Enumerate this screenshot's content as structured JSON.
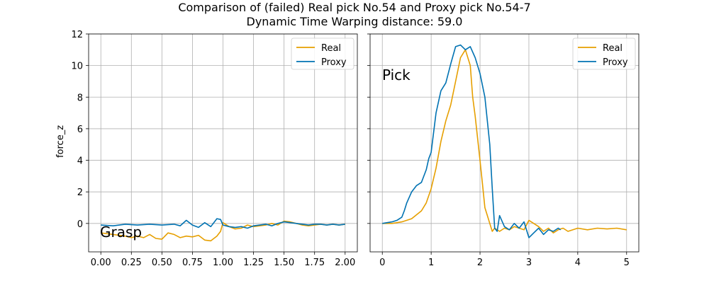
{
  "figure": {
    "title_line1": "Comparison of (failed) Real pick No.54 and Proxy pick No.54-7",
    "title_line2": "Dynamic Time Warping distance: 59.0"
  },
  "colors": {
    "real": "#e69f00",
    "proxy": "#0072b2",
    "grid": "#b0b0b0",
    "axis": "#000000"
  },
  "chart_data": [
    {
      "type": "line",
      "annotation": "Grasp",
      "xlabel": "",
      "ylabel": "force_z",
      "xlim": [
        -0.1,
        2.1
      ],
      "ylim": [
        -1.8,
        12
      ],
      "xticks": [
        0.0,
        0.25,
        0.5,
        0.75,
        1.0,
        1.25,
        1.5,
        1.75,
        2.0
      ],
      "xtick_labels": [
        "0.00",
        "0.25",
        "0.50",
        "0.75",
        "1.00",
        "1.25",
        "1.50",
        "1.75",
        "2.00"
      ],
      "yticks": [
        0,
        2,
        4,
        6,
        8,
        10,
        12
      ],
      "ytick_labels": [
        "0",
        "2",
        "4",
        "6",
        "8",
        "10",
        "12"
      ],
      "grid": true,
      "legend": "top-right",
      "series": [
        {
          "name": "Real",
          "x": [
            0.0,
            0.1,
            0.2,
            0.25,
            0.3,
            0.35,
            0.4,
            0.45,
            0.5,
            0.55,
            0.6,
            0.65,
            0.7,
            0.75,
            0.8,
            0.85,
            0.9,
            0.95,
            0.98,
            1.0,
            1.05,
            1.1,
            1.15,
            1.2,
            1.25,
            1.3,
            1.35,
            1.4,
            1.45,
            1.5,
            1.55,
            1.6,
            1.65,
            1.7,
            1.75,
            1.8,
            1.85,
            1.9,
            1.95,
            2.0
          ],
          "y": [
            -0.6,
            -0.7,
            -0.8,
            -0.9,
            -0.8,
            -0.9,
            -0.7,
            -0.95,
            -1.0,
            -0.6,
            -0.7,
            -0.9,
            -0.8,
            -0.85,
            -0.75,
            -1.05,
            -1.1,
            -0.8,
            -0.5,
            0.05,
            -0.2,
            -0.35,
            -0.3,
            -0.1,
            -0.2,
            -0.15,
            -0.1,
            0.0,
            -0.1,
            0.15,
            0.1,
            0.0,
            -0.1,
            -0.15,
            -0.1,
            -0.05,
            -0.1,
            -0.05,
            -0.1,
            -0.05
          ]
        },
        {
          "name": "Proxy",
          "x": [
            0.0,
            0.1,
            0.2,
            0.3,
            0.4,
            0.5,
            0.6,
            0.65,
            0.7,
            0.75,
            0.8,
            0.85,
            0.9,
            0.95,
            0.98,
            1.0,
            1.05,
            1.1,
            1.15,
            1.2,
            1.25,
            1.3,
            1.35,
            1.4,
            1.45,
            1.5,
            1.55,
            1.6,
            1.65,
            1.7,
            1.75,
            1.8,
            1.85,
            1.9,
            1.95,
            2.0
          ],
          "y": [
            -0.1,
            -0.15,
            -0.05,
            -0.1,
            -0.05,
            -0.1,
            -0.05,
            -0.15,
            0.2,
            -0.1,
            -0.25,
            0.05,
            -0.2,
            0.3,
            0.25,
            -0.1,
            -0.2,
            -0.25,
            -0.2,
            -0.3,
            -0.15,
            -0.1,
            -0.05,
            -0.15,
            0.0,
            0.1,
            0.05,
            0.0,
            -0.05,
            -0.1,
            -0.05,
            -0.05,
            -0.1,
            -0.05,
            -0.1,
            -0.05
          ]
        }
      ]
    },
    {
      "type": "line",
      "annotation": "Pick",
      "xlabel": "",
      "ylabel": "",
      "xlim": [
        -0.25,
        5.25
      ],
      "ylim": [
        -1.8,
        12
      ],
      "xticks": [
        0,
        1,
        2,
        3,
        4,
        5
      ],
      "xtick_labels": [
        "0",
        "1",
        "2",
        "3",
        "4",
        "5"
      ],
      "yticks": [
        0,
        2,
        4,
        6,
        8,
        10,
        12
      ],
      "grid": true,
      "legend": "top-right",
      "series": [
        {
          "name": "Real",
          "x": [
            0.0,
            0.2,
            0.4,
            0.6,
            0.8,
            0.9,
            1.0,
            1.1,
            1.2,
            1.3,
            1.4,
            1.5,
            1.6,
            1.7,
            1.8,
            1.85,
            1.9,
            2.0,
            2.05,
            2.1,
            2.15,
            2.2,
            2.25,
            2.3,
            2.4,
            2.5,
            2.6,
            2.7,
            2.8,
            2.9,
            3.0,
            3.1,
            3.2,
            3.3,
            3.4,
            3.5,
            3.6,
            3.7,
            3.8,
            3.9,
            4.0,
            4.2,
            4.4,
            4.6,
            4.8,
            5.0
          ],
          "y": [
            0.0,
            0.0,
            0.1,
            0.3,
            0.8,
            1.3,
            2.2,
            3.5,
            5.2,
            6.5,
            7.5,
            9.0,
            10.5,
            11.0,
            10.0,
            8.0,
            6.8,
            4.0,
            2.5,
            1.0,
            0.5,
            0.0,
            -0.5,
            -0.3,
            -0.5,
            -0.3,
            -0.4,
            -0.2,
            -0.3,
            -0.4,
            0.2,
            0.0,
            -0.2,
            -0.5,
            -0.3,
            -0.6,
            -0.4,
            -0.3,
            -0.5,
            -0.4,
            -0.3,
            -0.4,
            -0.3,
            -0.35,
            -0.3,
            -0.4
          ]
        },
        {
          "name": "Proxy",
          "x": [
            0.0,
            0.1,
            0.2,
            0.3,
            0.4,
            0.45,
            0.5,
            0.6,
            0.7,
            0.8,
            0.9,
            0.95,
            1.0,
            1.1,
            1.2,
            1.3,
            1.4,
            1.5,
            1.6,
            1.7,
            1.8,
            1.9,
            2.0,
            2.1,
            2.2,
            2.25,
            2.3,
            2.35,
            2.4,
            2.5,
            2.6,
            2.7,
            2.8,
            2.9,
            3.0,
            3.1,
            3.2,
            3.3,
            3.4,
            3.5,
            3.6,
            3.65
          ],
          "y": [
            0.0,
            0.05,
            0.1,
            0.2,
            0.4,
            0.8,
            1.3,
            2.0,
            2.4,
            2.6,
            3.4,
            4.1,
            4.5,
            7.0,
            8.4,
            8.9,
            10.1,
            11.2,
            11.3,
            11.0,
            11.2,
            10.5,
            9.5,
            8.0,
            5.0,
            2.2,
            -0.3,
            -0.5,
            0.5,
            -0.2,
            -0.4,
            0.0,
            -0.3,
            0.1,
            -0.9,
            -0.6,
            -0.3,
            -0.7,
            -0.4,
            -0.5,
            -0.3,
            -0.4
          ]
        }
      ]
    }
  ]
}
